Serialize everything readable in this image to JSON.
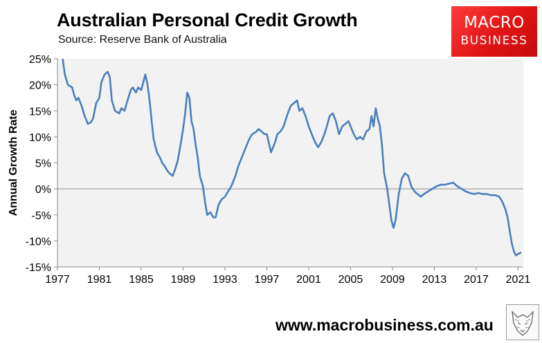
{
  "header": {
    "title": "Australian Personal Credit Growth",
    "subtitle": "Source: Reserve Bank of Australia"
  },
  "logo": {
    "line1": "MACRO",
    "line2": "BUSINESS",
    "color": "#e01414"
  },
  "footer": {
    "website": "www.macrobusiness.com.au",
    "emblem_icon": "wolf-emblem-icon"
  },
  "chart_data": {
    "type": "line",
    "title": "Australian Personal Credit Growth",
    "subtitle": "Source: Reserve Bank of Australia",
    "xlabel": "",
    "ylabel": "Annual Growth Rate",
    "xlim": [
      1977,
      2021.5
    ],
    "ylim": [
      -15,
      25
    ],
    "x_ticks": [
      1977,
      1981,
      1985,
      1989,
      1993,
      1997,
      2001,
      2005,
      2009,
      2013,
      2017,
      2021
    ],
    "y_ticks": [
      -15,
      -10,
      -5,
      0,
      5,
      10,
      15,
      20,
      25
    ],
    "y_tick_labels": [
      "-15%",
      "-10%",
      "-5%",
      "0%",
      "5%",
      "10%",
      "15%",
      "20%",
      "25%"
    ],
    "grid": false,
    "legend": "none",
    "line_color": "#4a7ebb",
    "series": [
      {
        "x": [
          1977.5,
          1977.7,
          1978.0,
          1978.4,
          1978.6,
          1978.8,
          1979.0,
          1979.3,
          1979.6,
          1979.9,
          1980.2,
          1980.4,
          1980.7,
          1981.0,
          1981.2,
          1981.5,
          1981.8,
          1982.0,
          1982.2,
          1982.5,
          1982.9,
          1983.1,
          1983.4,
          1983.7,
          1984.0,
          1984.2,
          1984.5,
          1984.7,
          1985.0,
          1985.2,
          1985.4,
          1985.6,
          1985.8,
          1986.0,
          1986.2,
          1986.5,
          1986.8,
          1987.0,
          1987.2,
          1987.5,
          1987.7,
          1988.0,
          1988.2,
          1988.5,
          1988.8,
          1989.0,
          1989.2,
          1989.4,
          1989.6,
          1989.8,
          1990.0,
          1990.2,
          1990.4,
          1990.6,
          1990.9,
          1991.1,
          1991.3,
          1991.6,
          1991.9,
          1992.1,
          1992.4,
          1992.7,
          1993.0,
          1993.3,
          1993.6,
          1994.0,
          1994.3,
          1994.6,
          1995.0,
          1995.3,
          1995.6,
          1996.0,
          1996.2,
          1996.5,
          1996.8,
          1997.0,
          1997.4,
          1997.8,
          1998.0,
          1998.3,
          1998.6,
          1999.0,
          1999.3,
          1999.6,
          1999.9,
          2000.1,
          2000.4,
          2000.7,
          2001.0,
          2001.3,
          2001.6,
          2001.9,
          2002.2,
          2002.5,
          2002.8,
          2003.0,
          2003.3,
          2003.6,
          2003.9,
          2004.2,
          2004.5,
          2004.8,
          2005.0,
          2005.3,
          2005.6,
          2005.9,
          2006.2,
          2006.5,
          2006.8,
          2007.0,
          2007.2,
          2007.4,
          2007.6,
          2007.8,
          2008.0,
          2008.2,
          2008.5,
          2008.7,
          2008.9,
          2009.1,
          2009.3,
          2009.6,
          2009.9,
          2010.2,
          2010.5,
          2010.8,
          2011.1,
          2011.4,
          2011.7,
          2012.0,
          2012.4,
          2012.8,
          2013.2,
          2013.6,
          2014.0,
          2014.4,
          2014.8,
          2015.2,
          2015.6,
          2016.0,
          2016.4,
          2016.8,
          2017.2,
          2017.6,
          2018.0,
          2018.4,
          2018.8,
          2019.2,
          2019.5,
          2019.8,
          2020.0,
          2020.2,
          2020.4,
          2020.6,
          2020.8,
          2021.0,
          2021.3
        ],
        "y": [
          25.0,
          22.0,
          20.0,
          19.5,
          18.0,
          17.0,
          17.5,
          16.0,
          14.0,
          12.5,
          12.8,
          13.5,
          16.5,
          17.5,
          20.5,
          22.0,
          22.5,
          21.5,
          17.0,
          15.0,
          14.5,
          15.5,
          15.0,
          17.0,
          19.0,
          19.5,
          18.5,
          19.5,
          19.0,
          20.5,
          22.0,
          20.0,
          17.0,
          13.0,
          9.5,
          7.0,
          6.0,
          5.0,
          4.5,
          3.5,
          3.0,
          2.5,
          3.5,
          5.5,
          9.0,
          11.5,
          14.5,
          18.5,
          17.5,
          13.0,
          11.5,
          8.5,
          6.0,
          2.5,
          0.5,
          -2.5,
          -5.0,
          -4.5,
          -5.5,
          -5.5,
          -3.0,
          -2.0,
          -1.5,
          -0.5,
          0.5,
          2.5,
          4.5,
          6.0,
          8.0,
          9.5,
          10.5,
          11.0,
          11.5,
          11.0,
          10.5,
          10.5,
          7.0,
          9.0,
          10.5,
          11.0,
          12.0,
          14.5,
          16.0,
          16.5,
          17.0,
          15.0,
          15.5,
          14.0,
          12.0,
          10.5,
          9.0,
          8.0,
          9.0,
          10.5,
          12.5,
          14.0,
          14.5,
          13.0,
          10.5,
          12.0,
          12.5,
          13.0,
          12.0,
          10.5,
          9.5,
          10.0,
          9.5,
          11.0,
          11.5,
          14.0,
          12.0,
          15.5,
          13.5,
          12.0,
          8.5,
          3.0,
          0.0,
          -3.0,
          -6.0,
          -7.5,
          -6.0,
          -1.0,
          2.0,
          3.0,
          2.5,
          0.5,
          -0.5,
          -1.0,
          -1.5,
          -1.0,
          -0.5,
          0.0,
          0.5,
          0.8,
          0.8,
          1.0,
          1.2,
          0.5,
          0.0,
          -0.5,
          -0.8,
          -1.0,
          -0.8,
          -1.0,
          -1.0,
          -1.2,
          -1.2,
          -1.5,
          -2.5,
          -4.0,
          -5.5,
          -8.0,
          -10.5,
          -12.0,
          -12.8,
          -12.5,
          -12.2
        ]
      }
    ]
  }
}
